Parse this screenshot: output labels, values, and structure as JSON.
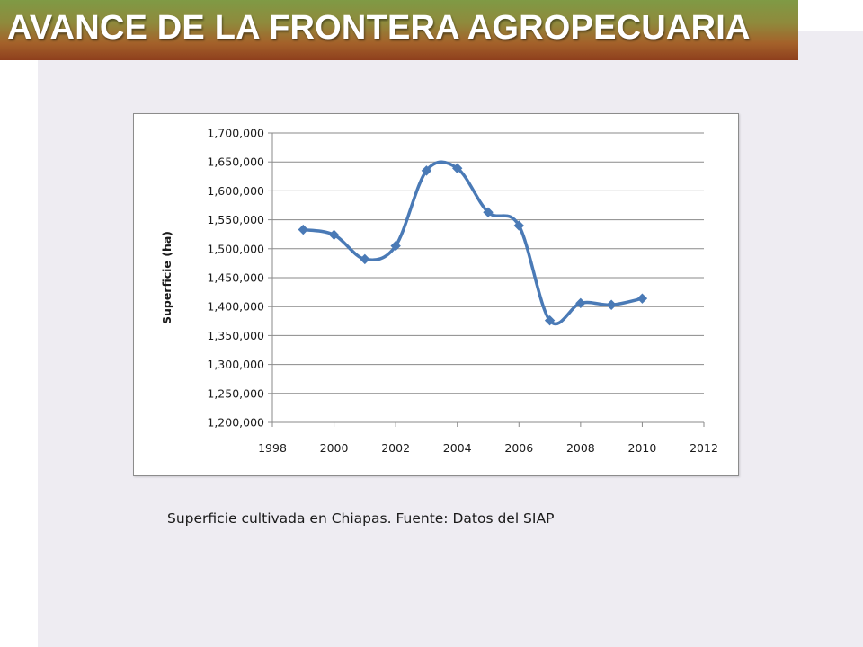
{
  "slide": {
    "title": "AVANCE DE LA FRONTERA AGROPECUARIA",
    "caption": "Superficie cultivada en Chiapas. Fuente: Datos del SIAP"
  },
  "colors": {
    "series": "#4a7ab6",
    "title_text": "#ffffff",
    "slide_background": "#eeecf2"
  },
  "chart_data": {
    "type": "line",
    "smooth": true,
    "marker": "diamond",
    "title": "",
    "xlabel": "",
    "ylabel": "Superficie (ha)",
    "xlim": [
      1998,
      2012
    ],
    "xticks": [
      1998,
      2000,
      2002,
      2004,
      2006,
      2008,
      2010,
      2012
    ],
    "xtick_labels": [
      "1998",
      "2000",
      "2002",
      "2004",
      "2006",
      "2008",
      "2010",
      "2012"
    ],
    "ylim": [
      1200000,
      1700000
    ],
    "yticks": [
      1200000,
      1250000,
      1300000,
      1350000,
      1400000,
      1450000,
      1500000,
      1550000,
      1600000,
      1650000,
      1700000
    ],
    "ytick_labels": [
      "1,200,000",
      "1,250,000",
      "1,300,000",
      "1,350,000",
      "1,400,000",
      "1,450,000",
      "1,500,000",
      "1,550,000",
      "1,600,000",
      "1,650,000",
      "1,700,000"
    ],
    "grid": "horizontal",
    "legend": "none",
    "series": [
      {
        "x": [
          1999,
          2000,
          2001,
          2002,
          2003,
          2004,
          2005,
          2006,
          2007,
          2008,
          2009,
          2010
        ],
        "y": [
          1533000,
          1524000,
          1482000,
          1505000,
          1635000,
          1639000,
          1563000,
          1540000,
          1376000,
          1406000,
          1403000,
          1414000
        ]
      }
    ]
  }
}
